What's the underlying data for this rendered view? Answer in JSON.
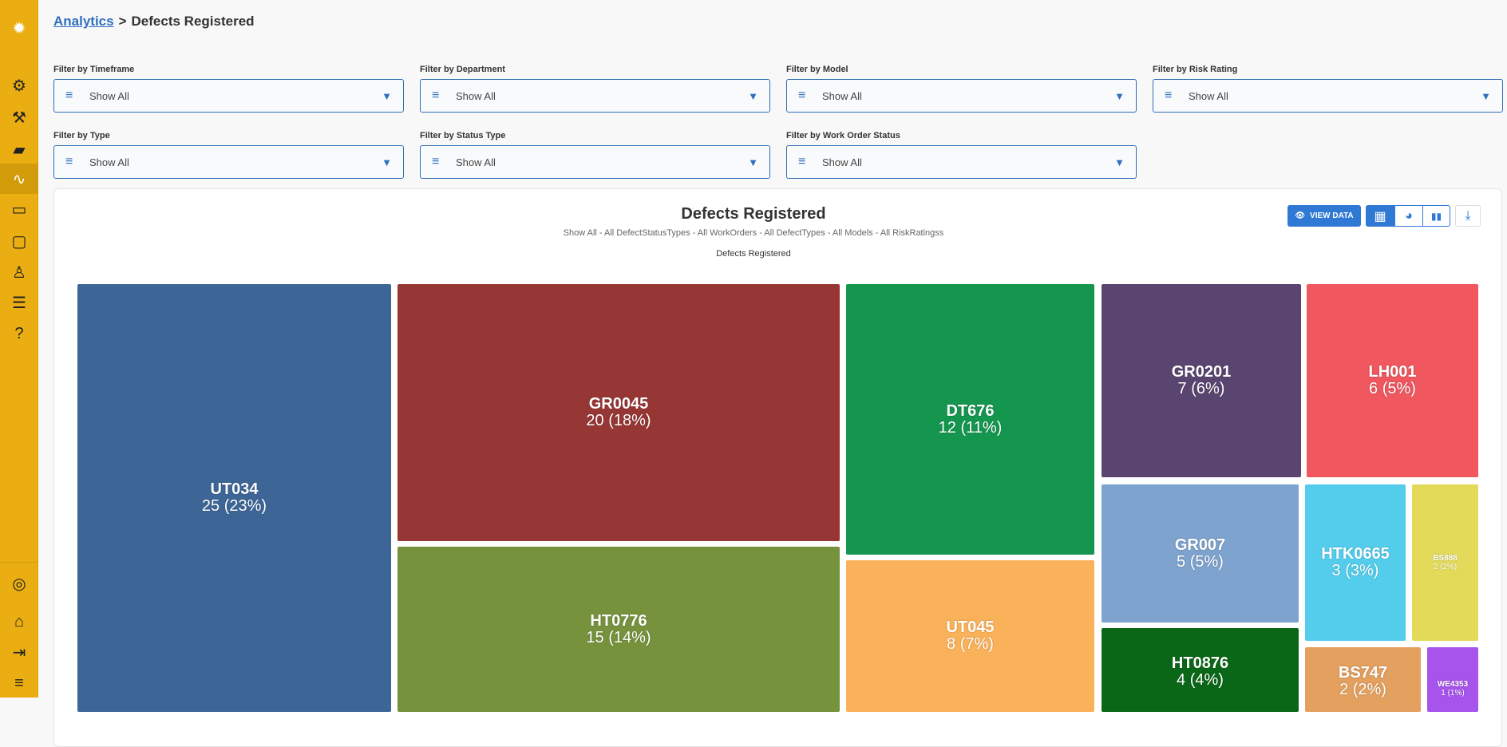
{
  "sidebar": {
    "items": [
      {
        "icon": "logo-icon",
        "glyph": "✹"
      },
      {
        "icon": "gear-icon",
        "glyph": "⚙"
      },
      {
        "icon": "tools-icon",
        "glyph": "⚒"
      },
      {
        "icon": "barrier-icon",
        "glyph": "▰"
      },
      {
        "icon": "analytics-icon",
        "glyph": "∿",
        "active": true
      },
      {
        "icon": "chat-icon",
        "glyph": "▭"
      },
      {
        "icon": "clipboard-icon",
        "glyph": "▢"
      },
      {
        "icon": "user-icon",
        "glyph": "♙"
      },
      {
        "icon": "sliders-icon",
        "glyph": "☰"
      },
      {
        "icon": "help-icon",
        "glyph": "?"
      }
    ],
    "bottom": [
      {
        "icon": "profile-icon",
        "glyph": "◎"
      },
      {
        "icon": "home-icon",
        "glyph": "⌂"
      },
      {
        "icon": "logout-icon",
        "glyph": "⇥"
      },
      {
        "icon": "collapse-menu-icon",
        "glyph": "≡"
      }
    ]
  },
  "breadcrumb": {
    "parent": "Analytics",
    "separator": ">",
    "current": "Defects Registered"
  },
  "filters": [
    {
      "label": "Filter by Timeframe",
      "value": "Show All"
    },
    {
      "label": "Filter by Department",
      "value": "Show All"
    },
    {
      "label": "Filter by Model",
      "value": "Show All"
    },
    {
      "label": "Filter by Risk Rating",
      "value": "Show All"
    },
    {
      "label": "Filter by Type",
      "value": "Show All"
    },
    {
      "label": "Filter by Status Type",
      "value": "Show All"
    },
    {
      "label": "Filter by Work Order Status",
      "value": "Show All"
    }
  ],
  "panel": {
    "title": "Defects Registered",
    "subtitle": "Show All - All DefectStatusTypes - All WorkOrders - All DefectTypes - All Models - All RiskRatingss",
    "view_data": "VIEW DATA",
    "accent": "#2f78d4"
  },
  "chart_data": {
    "type": "treemap",
    "title": "Defects Registered",
    "items": [
      {
        "name": "UT034",
        "label": "25 (23%)",
        "value": 25,
        "color": "#3d6697"
      },
      {
        "name": "GR0045",
        "label": "20 (18%)",
        "value": 20,
        "color": "#973735"
      },
      {
        "name": "HT0776",
        "label": "15 (14%)",
        "value": 15,
        "color": "#76923c"
      },
      {
        "name": "DT676",
        "label": "12 (11%)",
        "value": 12,
        "color": "#14964f"
      },
      {
        "name": "UT045",
        "label": "8 (7%)",
        "value": 8,
        "color": "#fab25a"
      },
      {
        "name": "GR0201",
        "label": "7 (6%)",
        "value": 7,
        "color": "#5a4570"
      },
      {
        "name": "LH001",
        "label": "6 (5%)",
        "value": 6,
        "color": "#f0575f"
      },
      {
        "name": "GR007",
        "label": "5 (5%)",
        "value": 5,
        "color": "#7ea3ce"
      },
      {
        "name": "HTK0665",
        "label": "3 (3%)",
        "value": 3,
        "color": "#54cded"
      },
      {
        "name": "BS888",
        "label": "2 (2%)",
        "value": 2,
        "color": "#e3da5a"
      },
      {
        "name": "HT0876",
        "label": "4 (4%)",
        "value": 4,
        "color": "#0b6718"
      },
      {
        "name": "BS747",
        "label": "2 (2%)",
        "value": 2,
        "color": "#e3a05e"
      },
      {
        "name": "WE4353",
        "label": "1 (1%)",
        "value": 1,
        "color": "#a654ec"
      }
    ]
  }
}
